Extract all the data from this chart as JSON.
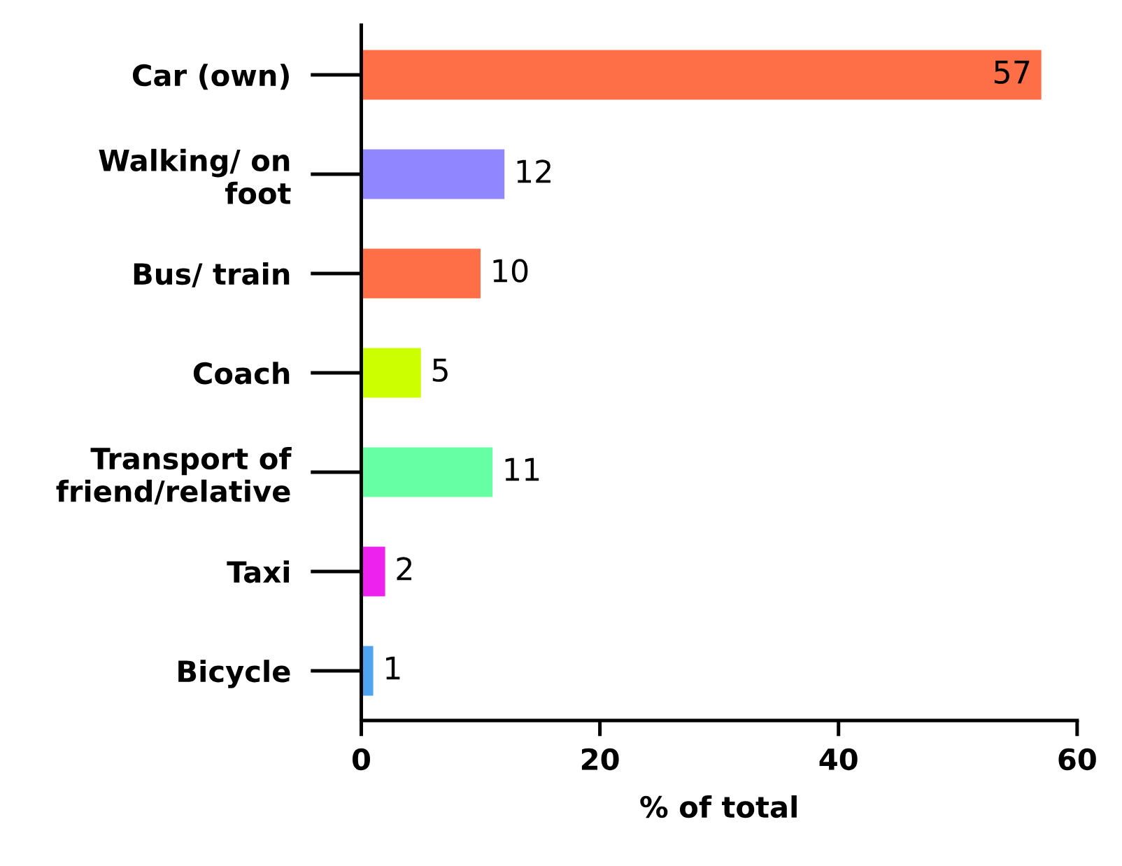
{
  "chart_data": {
    "type": "bar",
    "orientation": "horizontal",
    "xlabel": "% of total",
    "categories": [
      "Car (own)",
      "Walking/ on\nfoot",
      "Bus/ train",
      "Coach",
      "Transport of\nfriend/relative",
      "Taxi",
      "Bicycle"
    ],
    "values": [
      57,
      12,
      10,
      5,
      11,
      2,
      1
    ],
    "colors": [
      "#ff6f47",
      "#9086ff",
      "#ff6f47",
      "#ccff00",
      "#66ffa3",
      "#ee22ee",
      "#4fa3f0"
    ],
    "xlim": [
      0,
      60
    ],
    "xticks": [
      0,
      20,
      40,
      60
    ],
    "data_labels": true,
    "grid": false,
    "legend": false
  }
}
